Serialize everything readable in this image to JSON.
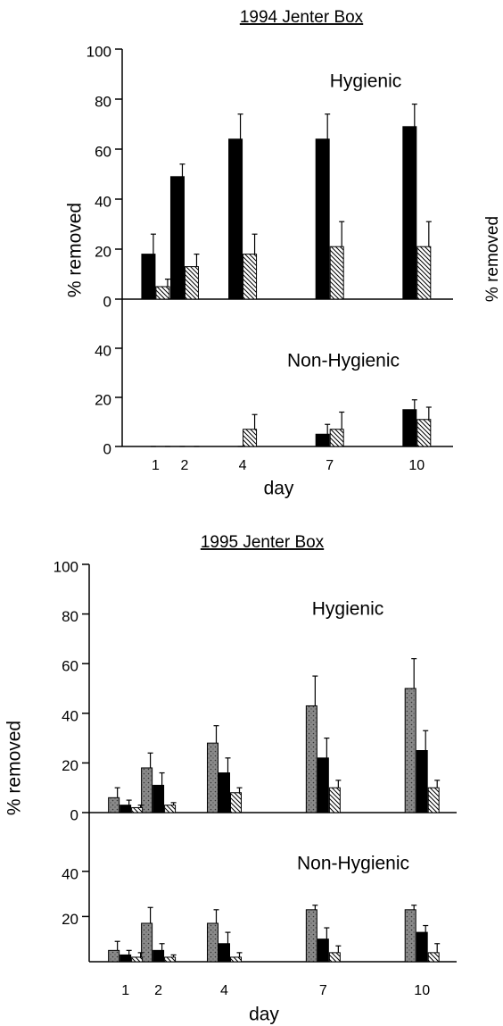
{
  "chart_data": [
    {
      "type": "bar",
      "title": "1994 Jenter Box",
      "annotation": "Hygienic",
      "ylabel": "% removed",
      "x": [
        1,
        2,
        4,
        7,
        10
      ],
      "xlim": [
        -0.15,
        11.25
      ],
      "ylim": [
        0,
        100
      ],
      "yticks": [
        0,
        20,
        40,
        60,
        80,
        100
      ],
      "series": [
        {
          "color": "#000000",
          "values": [
            18,
            49,
            64,
            64,
            69
          ],
          "errors": [
            8,
            5,
            10,
            10,
            9
          ]
        },
        {
          "color": "#000000",
          "pattern": "hatch",
          "values": [
            5,
            13,
            18,
            21,
            21
          ],
          "errors": [
            3,
            5,
            8,
            10,
            10
          ]
        }
      ]
    },
    {
      "type": "bar",
      "annotation": "Non-Hygienic",
      "xlabel": "day",
      "x": [
        1,
        2,
        4,
        7,
        10
      ],
      "xticks": [
        1,
        2,
        4,
        7,
        10
      ],
      "xlim": [
        -0.15,
        11.25
      ],
      "ylim": [
        0,
        60
      ],
      "yticks": [
        0,
        20,
        40
      ],
      "series": [
        {
          "color": "#000000",
          "values": [
            0,
            0,
            0,
            5,
            15
          ],
          "errors": [
            0,
            0,
            0,
            4,
            4
          ]
        },
        {
          "color": "#000000",
          "pattern": "hatch",
          "values": [
            0,
            0,
            7,
            7,
            11
          ],
          "errors": [
            0,
            0,
            6,
            7,
            5
          ]
        }
      ]
    },
    {
      "type": "bar",
      "title": "1995 Jenter Box",
      "annotation": "Hygienic",
      "ylabel": "% removed",
      "x": [
        1,
        2,
        4,
        7,
        10
      ],
      "xlim": [
        -0.1,
        11.05
      ],
      "ylim": [
        0,
        100
      ],
      "yticks": [
        0,
        20,
        40,
        60,
        80,
        100
      ],
      "series": [
        {
          "color": "#8a8a8a",
          "pattern": "dots",
          "values": [
            6,
            18,
            28,
            43,
            50
          ],
          "errors": [
            4,
            6,
            7,
            12,
            12
          ]
        },
        {
          "color": "#000000",
          "values": [
            3,
            11,
            16,
            22,
            25
          ],
          "errors": [
            2,
            5,
            6,
            8,
            8
          ]
        },
        {
          "color": "#000000",
          "pattern": "hatch",
          "values": [
            2,
            3,
            8,
            10,
            10
          ],
          "errors": [
            1,
            1,
            2,
            3,
            3
          ]
        }
      ]
    },
    {
      "type": "bar",
      "annotation": "Non-Hygienic",
      "xlabel": "day",
      "x": [
        1,
        2,
        4,
        7,
        10
      ],
      "xticks": [
        1,
        2,
        4,
        7,
        10
      ],
      "xlim": [
        -0.1,
        11.05
      ],
      "ylim": [
        0,
        66
      ],
      "yticks": [
        20,
        40
      ],
      "series": [
        {
          "color": "#8a8a8a",
          "pattern": "dots",
          "values": [
            5,
            17,
            17,
            23,
            23
          ],
          "errors": [
            4,
            7,
            6,
            2,
            2
          ]
        },
        {
          "color": "#000000",
          "values": [
            3,
            5,
            8,
            10,
            13
          ],
          "errors": [
            2,
            3,
            5,
            5,
            3
          ]
        },
        {
          "color": "#000000",
          "pattern": "hatch",
          "values": [
            2,
            2,
            2,
            4,
            4
          ],
          "errors": [
            2,
            1,
            2,
            3,
            4
          ]
        }
      ]
    }
  ],
  "cropped_label": "% removed"
}
